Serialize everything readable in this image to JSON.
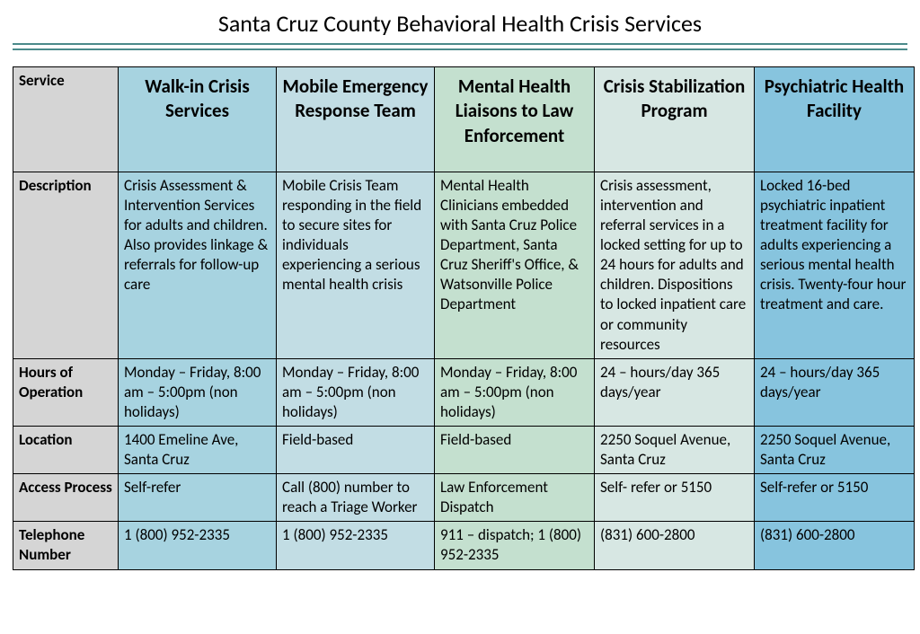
{
  "title": "Santa Cruz County Behavioral Health Crisis Services",
  "rule_color": "#4b8a8a",
  "colors": {
    "rowhdr_bg": "#d5d5d5",
    "col_bg": [
      "#a7d3e0",
      "#c2dde4",
      "#c4e0cf",
      "#d7e7e3",
      "#87c4de"
    ]
  },
  "row_labels": [
    "Service",
    "Description",
    "Hours of Operation",
    "Location",
    "Access Process",
    "Telephone Number"
  ],
  "columns": [
    {
      "name": "Walk-in Crisis Services",
      "description": "Crisis Assessment & Intervention Services for adults and children.  Also provides linkage & referrals for follow-up care",
      "hours": "Monday – Friday, 8:00 am – 5:00pm (non holidays)",
      "location": "1400 Emeline Ave, Santa Cruz",
      "access": "Self-refer",
      "phone": "1 (800) 952-2335"
    },
    {
      "name": "Mobile Emergency Response Team",
      "description": "Mobile Crisis Team responding in the field to secure sites for individuals experiencing a serious mental health crisis",
      "hours": "Monday – Friday, 8:00 am – 5:00pm (non holidays)",
      "location": "Field-based",
      "access": "Call (800) number to reach a Triage Worker",
      "phone": "1 (800) 952-2335"
    },
    {
      "name": "Mental Health Liaisons to Law Enforcement",
      "description": "Mental Health Clinicians embedded with Santa Cruz Police Department, Santa Cruz Sheriff's Office, & Watsonville Police Department",
      "hours": "Monday – Friday, 8:00 am – 5:00pm (non holidays)",
      "location": "Field-based",
      "access": "Law Enforcement Dispatch",
      "phone": "911 – dispatch; 1 (800) 952-2335"
    },
    {
      "name": "Crisis Stabilization Program",
      "description": "Crisis assessment, intervention and referral services in a locked setting for up to 24 hours for adults and children.  Dispositions to locked inpatient care or community resources",
      "hours": "24 – hours/day 365 days/year",
      "location": "2250 Soquel Avenue, Santa Cruz",
      "access": "Self- refer or 5150",
      "phone": "(831) 600-2800"
    },
    {
      "name": "Psychiatric Health Facility",
      "description": "Locked 16-bed psychiatric inpatient treatment facility for adults experiencing a serious mental health crisis. Twenty-four hour treatment and care.",
      "hours": "24 – hours/day 365 days/year",
      "location": "2250 Soquel Avenue, Santa Cruz",
      "access": "Self-refer or 5150",
      "phone": "(831) 600-2800"
    }
  ]
}
